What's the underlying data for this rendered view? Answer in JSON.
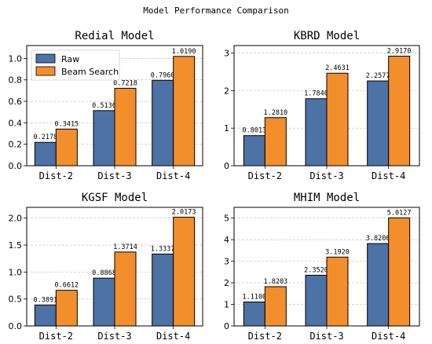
{
  "figure": {
    "title": "Model Performance Comparison",
    "colors": {
      "raw": "#4c72a6",
      "beam": "#f28e2b"
    }
  },
  "chart_data": [
    {
      "type": "bar",
      "title": "Redial Model",
      "categories": [
        "Dist-2",
        "Dist-3",
        "Dist-4"
      ],
      "series": [
        {
          "name": "Raw",
          "values": [
            0.2178,
            0.5136,
            0.796
          ],
          "labels": [
            "0.2178",
            "0.5136",
            "0.7960"
          ]
        },
        {
          "name": "Beam Search",
          "values": [
            0.3415,
            0.7218,
            1.019
          ],
          "labels": [
            "0.3415",
            "0.7218",
            "1.0190"
          ]
        }
      ],
      "ylim": [
        0,
        1.12
      ],
      "yticks": [
        "0.0",
        "0.2",
        "0.4",
        "0.6",
        "0.8",
        "1.0"
      ],
      "ytick_values": [
        0,
        0.2,
        0.4,
        0.6,
        0.8,
        1.0
      ],
      "legend": "top-left",
      "grid": "y"
    },
    {
      "type": "bar",
      "title": "KBRD Model",
      "categories": [
        "Dist-2",
        "Dist-3",
        "Dist-4"
      ],
      "series": [
        {
          "name": "Raw",
          "values": [
            0.8013,
            1.784,
            2.2577
          ],
          "labels": [
            "0.8013",
            "1.7840",
            "2.2577"
          ]
        },
        {
          "name": "Beam Search",
          "values": [
            1.281,
            2.4631,
            2.917
          ],
          "labels": [
            "1.2810",
            "2.4631",
            "2.9170"
          ]
        }
      ],
      "ylim": [
        0,
        3.2
      ],
      "yticks": [
        "0",
        "1",
        "2",
        "3"
      ],
      "ytick_values": [
        0,
        1,
        2,
        3
      ],
      "grid": "y"
    },
    {
      "type": "bar",
      "title": "KGSF Model",
      "categories": [
        "Dist-2",
        "Dist-3",
        "Dist-4"
      ],
      "series": [
        {
          "name": "Raw",
          "values": [
            0.3891,
            0.8868,
            1.3337
          ],
          "labels": [
            "0.3891",
            "0.8868",
            "1.3337"
          ]
        },
        {
          "name": "Beam Search",
          "values": [
            0.6612,
            1.3714,
            2.0173
          ],
          "labels": [
            "0.6612",
            "1.3714",
            "2.0173"
          ]
        }
      ],
      "ylim": [
        0,
        2.2
      ],
      "yticks": [
        "0.0",
        "0.5",
        "1.0",
        "1.5",
        "2.0"
      ],
      "ytick_values": [
        0,
        0.5,
        1.0,
        1.5,
        2.0
      ],
      "grid": "y"
    },
    {
      "type": "bar",
      "title": "MHIM Model",
      "categories": [
        "Dist-2",
        "Dist-3",
        "Dist-4"
      ],
      "series": [
        {
          "name": "Raw",
          "values": [
            1.11,
            2.352,
            3.82
          ],
          "labels": [
            "1.1100",
            "2.3520",
            "3.8200"
          ]
        },
        {
          "name": "Beam Search",
          "values": [
            1.8203,
            3.192,
            5.0127
          ],
          "labels": [
            "1.8203",
            "3.1920",
            "5.0127"
          ]
        }
      ],
      "ylim": [
        0,
        5.5
      ],
      "yticks": [
        "0",
        "1",
        "2",
        "3",
        "4",
        "5"
      ],
      "ytick_values": [
        0,
        1,
        2,
        3,
        4,
        5
      ],
      "grid": "y"
    }
  ]
}
